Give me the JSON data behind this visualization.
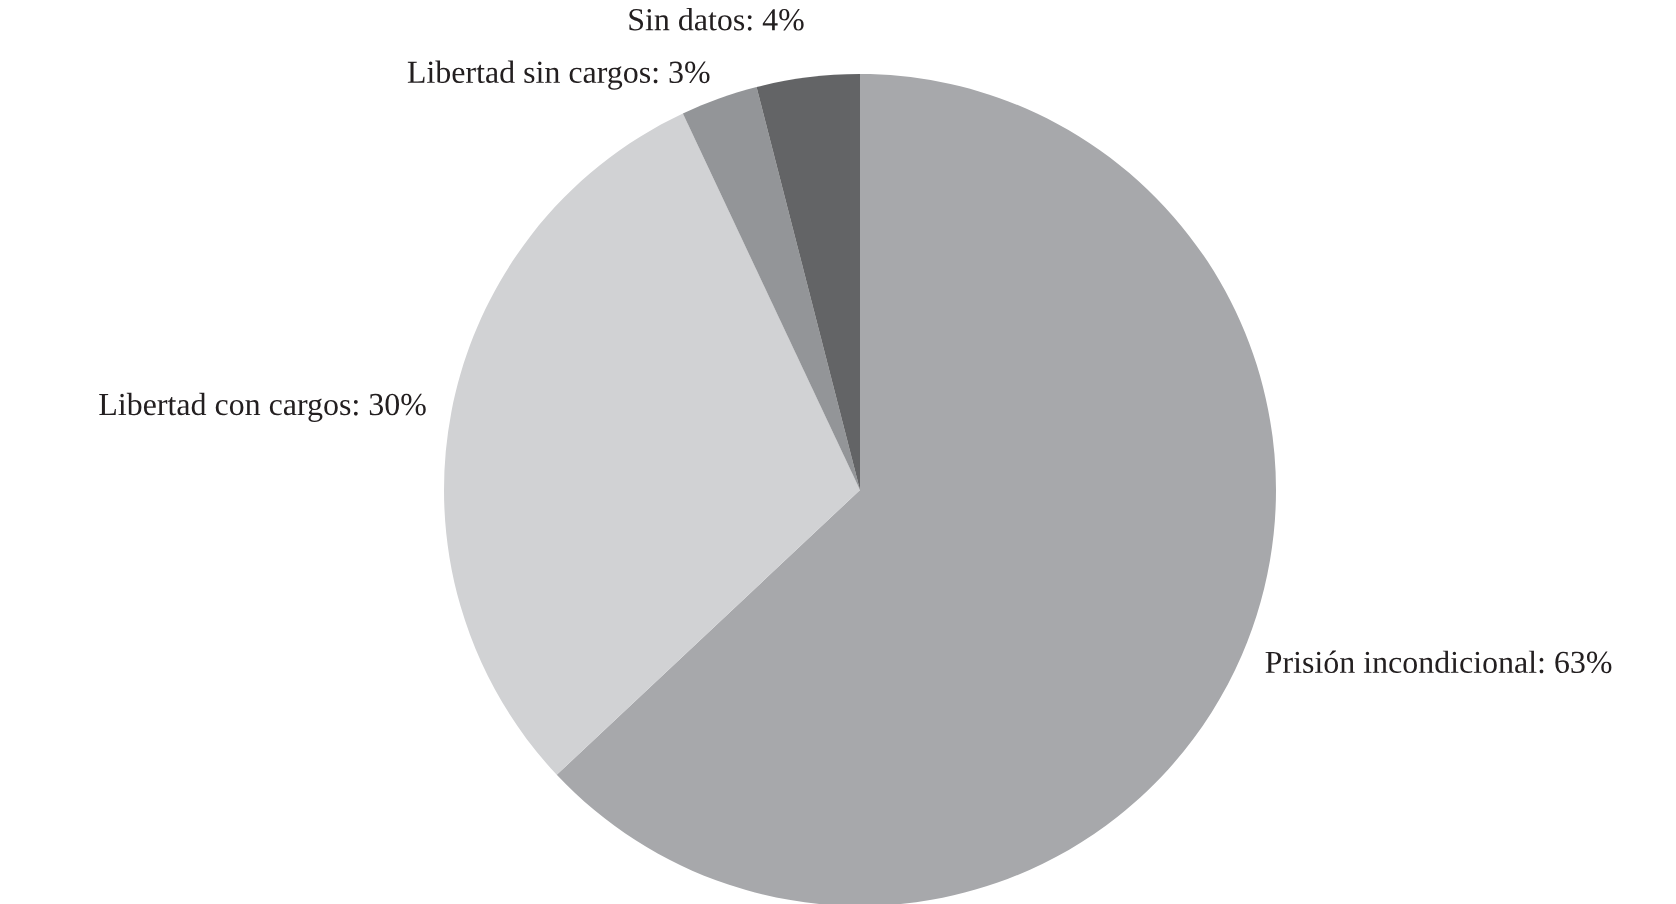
{
  "chart_data": {
    "type": "pie",
    "categories": [
      "Prisión incondicional",
      "Libertad con cargos",
      "Libertad sin cargos",
      "Sin datos"
    ],
    "values": [
      63,
      30,
      3,
      4
    ],
    "value_labels": [
      "63%",
      "30%",
      "3%",
      "4%"
    ],
    "colors": [
      "#a7a8ab",
      "#d1d2d4",
      "#939598",
      "#636466"
    ],
    "legend": false
  }
}
